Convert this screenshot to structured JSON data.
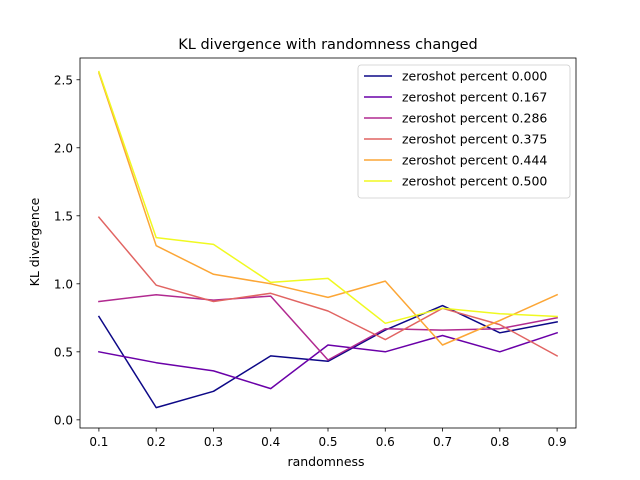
{
  "chart_data": {
    "type": "line",
    "title": "KL divergence with randomness changed",
    "xlabel": "randomness",
    "ylabel": "KL divergence",
    "x": [
      0.1,
      0.2,
      0.3,
      0.4,
      0.5,
      0.6,
      0.7,
      0.8,
      0.9
    ],
    "xticks": [
      "0.1",
      "0.2",
      "0.3",
      "0.4",
      "0.5",
      "0.6",
      "0.7",
      "0.8",
      "0.9"
    ],
    "yticks": [
      "0.0",
      "0.5",
      "1.0",
      "1.5",
      "2.0",
      "2.5"
    ],
    "xlim": [
      0.067,
      0.933
    ],
    "ylim": [
      -0.06,
      2.66
    ],
    "grid": false,
    "legend_position": "top-right",
    "series": [
      {
        "name": "zeroshot percent 0.000",
        "color": "#0d0887",
        "values": [
          0.76,
          0.09,
          0.21,
          0.47,
          0.43,
          0.66,
          0.84,
          0.64,
          0.72
        ]
      },
      {
        "name": "zeroshot percent 0.167",
        "color": "#6a00a8",
        "values": [
          0.5,
          0.42,
          0.36,
          0.23,
          0.55,
          0.5,
          0.62,
          0.5,
          0.64
        ]
      },
      {
        "name": "zeroshot percent 0.286",
        "color": "#b12a90",
        "values": [
          0.87,
          0.92,
          0.88,
          0.91,
          0.44,
          0.67,
          0.66,
          0.67,
          0.75
        ]
      },
      {
        "name": "zeroshot percent 0.375",
        "color": "#e16462",
        "values": [
          1.49,
          0.99,
          0.87,
          0.93,
          0.8,
          0.59,
          0.82,
          0.7,
          0.47
        ]
      },
      {
        "name": "zeroshot percent 0.444",
        "color": "#fca636",
        "values": [
          2.55,
          1.28,
          1.07,
          1.0,
          0.9,
          1.02,
          0.55,
          0.73,
          0.92
        ]
      },
      {
        "name": "zeroshot percent 0.500",
        "color": "#f0f921",
        "values": [
          2.56,
          1.34,
          1.29,
          1.01,
          1.04,
          0.71,
          0.82,
          0.78,
          0.76
        ]
      }
    ]
  }
}
